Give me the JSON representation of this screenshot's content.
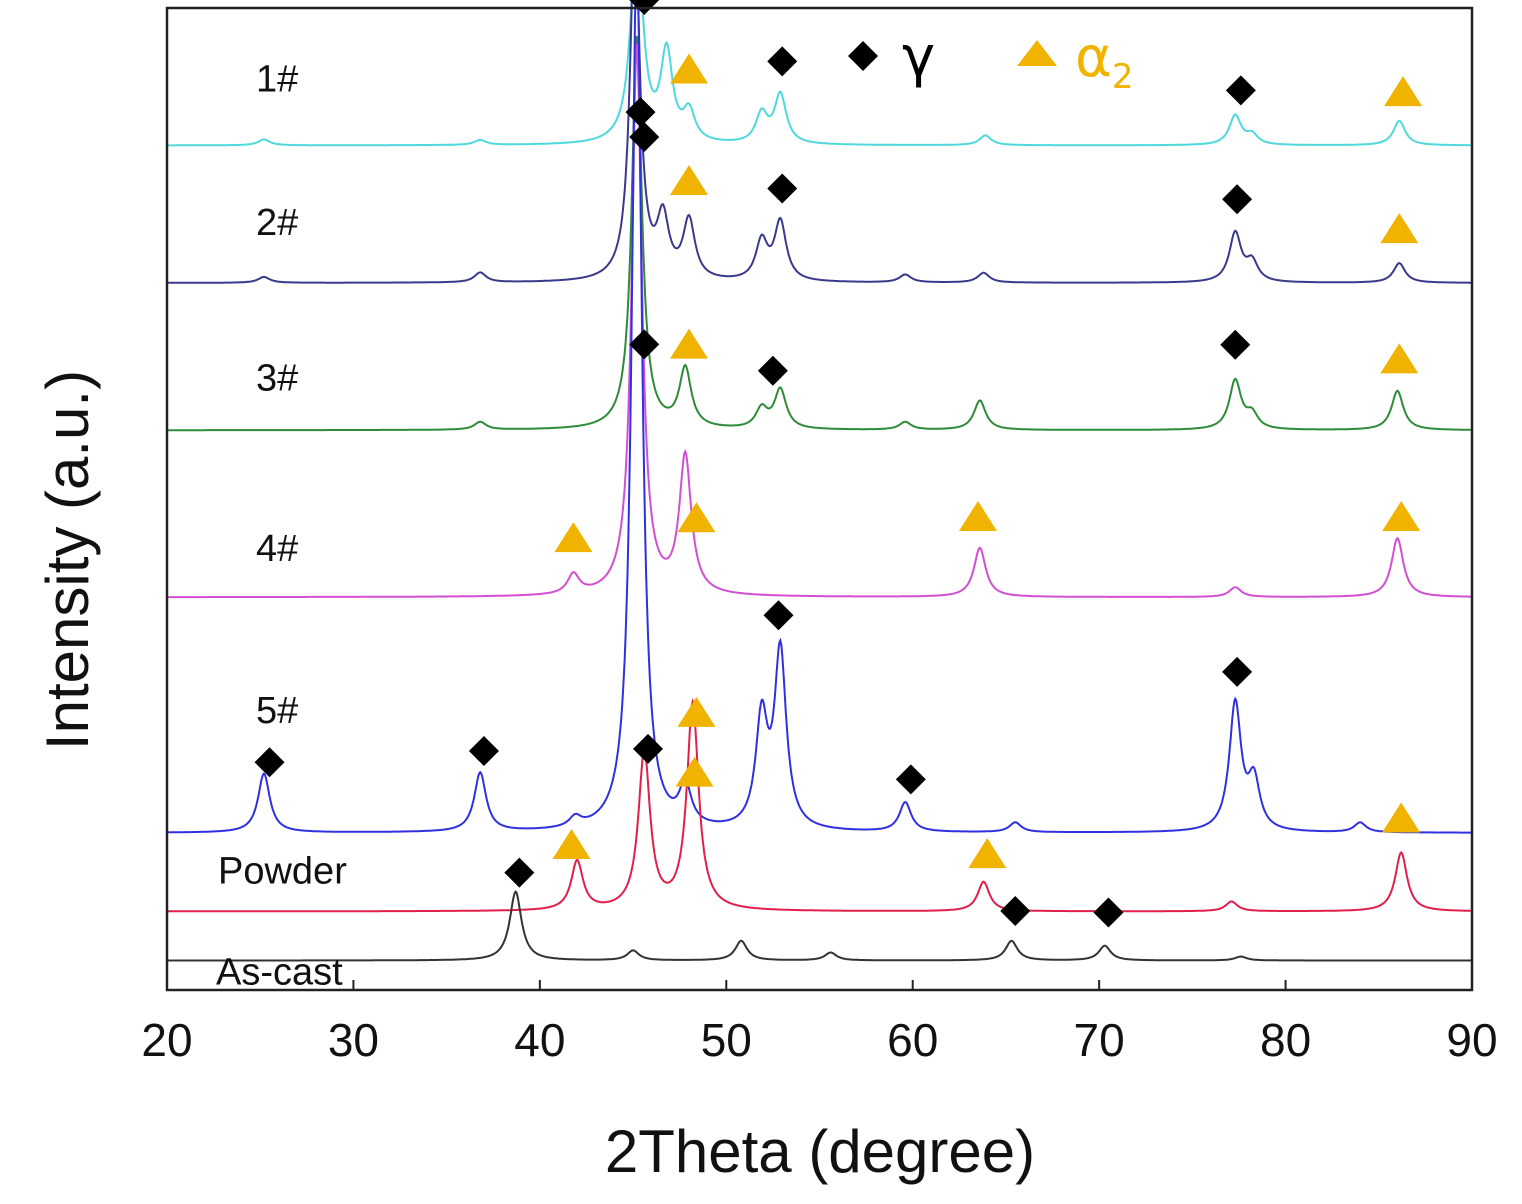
{
  "chart_data": {
    "type": "line",
    "xlabel": "2Theta (degree)",
    "ylabel": "Intensity (a.u.)",
    "xlim": [
      20,
      90
    ],
    "xticks": [
      20,
      30,
      40,
      50,
      60,
      70,
      80,
      90
    ],
    "yticks_shown": false,
    "grid": false,
    "stacked_offsets": true,
    "legend": {
      "placement": "top-center",
      "entries": [
        {
          "marker": "diamond",
          "label": "γ",
          "color": "#000000"
        },
        {
          "marker": "triangle",
          "label": "α",
          "subscript": "2",
          "color": "#F0B400"
        }
      ]
    },
    "series": [
      {
        "name": "1#",
        "color": "#4FD9DC",
        "baseline": 0.86,
        "peaks": [
          [
            25.2,
            0.006
          ],
          [
            36.8,
            0.005
          ],
          [
            45.2,
            0.22
          ],
          [
            46.8,
            0.09
          ],
          [
            48.0,
            0.03
          ],
          [
            51.9,
            0.03
          ],
          [
            52.9,
            0.05
          ],
          [
            63.9,
            0.01
          ],
          [
            77.3,
            0.03
          ],
          [
            78.2,
            0.01
          ],
          [
            86.1,
            0.025
          ]
        ],
        "markers": [
          {
            "x": 45.6,
            "phase": "γ"
          },
          {
            "x": 48.0,
            "phase": "α2"
          },
          {
            "x": 53.0,
            "phase": "γ"
          },
          {
            "x": 77.6,
            "phase": "γ"
          },
          {
            "x": 86.3,
            "phase": "α2"
          }
        ]
      },
      {
        "name": "2#",
        "color": "#3A3A8C",
        "baseline": 0.72,
        "peaks": [
          [
            25.2,
            0.006
          ],
          [
            36.8,
            0.01
          ],
          [
            45.1,
            0.36
          ],
          [
            46.6,
            0.06
          ],
          [
            48.0,
            0.06
          ],
          [
            51.9,
            0.04
          ],
          [
            52.9,
            0.06
          ],
          [
            59.6,
            0.008
          ],
          [
            63.8,
            0.01
          ],
          [
            77.3,
            0.05
          ],
          [
            78.2,
            0.02
          ],
          [
            86.1,
            0.02
          ]
        ],
        "markers": [
          {
            "x": 45.6,
            "phase": "γ"
          },
          {
            "x": 48.0,
            "phase": "α2"
          },
          {
            "x": 53.0,
            "phase": "γ"
          },
          {
            "x": 77.4,
            "phase": "γ"
          },
          {
            "x": 86.1,
            "phase": "α2"
          }
        ]
      },
      {
        "name": "3#",
        "color": "#2E8B3A",
        "baseline": 0.57,
        "peaks": [
          [
            36.8,
            0.008
          ],
          [
            45.2,
            0.4
          ],
          [
            47.8,
            0.06
          ],
          [
            51.9,
            0.02
          ],
          [
            52.9,
            0.04
          ],
          [
            59.6,
            0.008
          ],
          [
            63.6,
            0.03
          ],
          [
            77.3,
            0.05
          ],
          [
            78.2,
            0.015
          ],
          [
            86.0,
            0.04
          ]
        ],
        "markers": [
          {
            "x": 45.4,
            "phase": "γ"
          },
          {
            "x": 48.0,
            "phase": "α2"
          },
          {
            "x": 52.5,
            "phase": "γ"
          },
          {
            "x": 77.3,
            "phase": "γ"
          },
          {
            "x": 86.1,
            "phase": "α2"
          }
        ]
      },
      {
        "name": "4#",
        "color": "#D24FD2",
        "baseline": 0.4,
        "peaks": [
          [
            41.8,
            0.02
          ],
          [
            45.2,
            0.56
          ],
          [
            47.8,
            0.14
          ],
          [
            63.6,
            0.05
          ],
          [
            77.3,
            0.01
          ],
          [
            86.0,
            0.06
          ]
        ],
        "markers": [
          {
            "x": 45.6,
            "phase": "γ"
          },
          {
            "x": 41.8,
            "phase": "α2"
          },
          {
            "x": 48.4,
            "phase": "α2"
          },
          {
            "x": 63.5,
            "phase": "α2"
          },
          {
            "x": 86.2,
            "phase": "α2"
          }
        ]
      },
      {
        "name": "5#",
        "color": "#3030E0",
        "baseline": 0.16,
        "peaks": [
          [
            25.2,
            0.06
          ],
          [
            36.8,
            0.06
          ],
          [
            41.9,
            0.01
          ],
          [
            45.2,
            0.9
          ],
          [
            47.8,
            0.04
          ],
          [
            51.9,
            0.11
          ],
          [
            52.9,
            0.18
          ],
          [
            59.6,
            0.03
          ],
          [
            65.5,
            0.01
          ],
          [
            77.3,
            0.13
          ],
          [
            78.3,
            0.05
          ],
          [
            84.0,
            0.01
          ]
        ],
        "markers": [
          {
            "x": 25.5,
            "phase": "γ"
          },
          {
            "x": 37.0,
            "phase": "γ"
          },
          {
            "x": 45.3,
            "phase": "γ"
          },
          {
            "x": 52.8,
            "phase": "γ"
          },
          {
            "x": 48.3,
            "phase": "α2"
          },
          {
            "x": 59.9,
            "phase": "γ"
          },
          {
            "x": 77.4,
            "phase": "γ"
          }
        ]
      },
      {
        "name": "Powder",
        "color": "#E0204A",
        "baseline": 0.08,
        "peaks": [
          [
            42.0,
            0.05
          ],
          [
            45.6,
            0.16
          ],
          [
            48.2,
            0.21
          ],
          [
            63.8,
            0.03
          ],
          [
            77.1,
            0.01
          ],
          [
            86.2,
            0.06
          ]
        ],
        "markers": [
          {
            "x": 41.7,
            "phase": "α2"
          },
          {
            "x": 45.8,
            "phase": "γ"
          },
          {
            "x": 48.4,
            "phase": "α2"
          },
          {
            "x": 64.0,
            "phase": "α2"
          },
          {
            "x": 86.2,
            "phase": "α2"
          }
        ]
      },
      {
        "name": "As-cast",
        "color": "#333333",
        "baseline": 0.03,
        "peaks": [
          [
            38.7,
            0.07
          ],
          [
            45.0,
            0.01
          ],
          [
            50.8,
            0.02
          ],
          [
            55.6,
            0.008
          ],
          [
            65.3,
            0.02
          ],
          [
            70.3,
            0.015
          ],
          [
            77.6,
            0.004
          ]
        ],
        "markers": [
          {
            "x": 38.9,
            "phase": "γ"
          },
          {
            "x": 65.5,
            "phase": "γ"
          },
          {
            "x": 70.5,
            "phase": "γ"
          }
        ]
      }
    ]
  },
  "colors": {
    "gamma_marker": "#000000",
    "alpha2_marker": "#F0B400",
    "axis": "#222222"
  }
}
